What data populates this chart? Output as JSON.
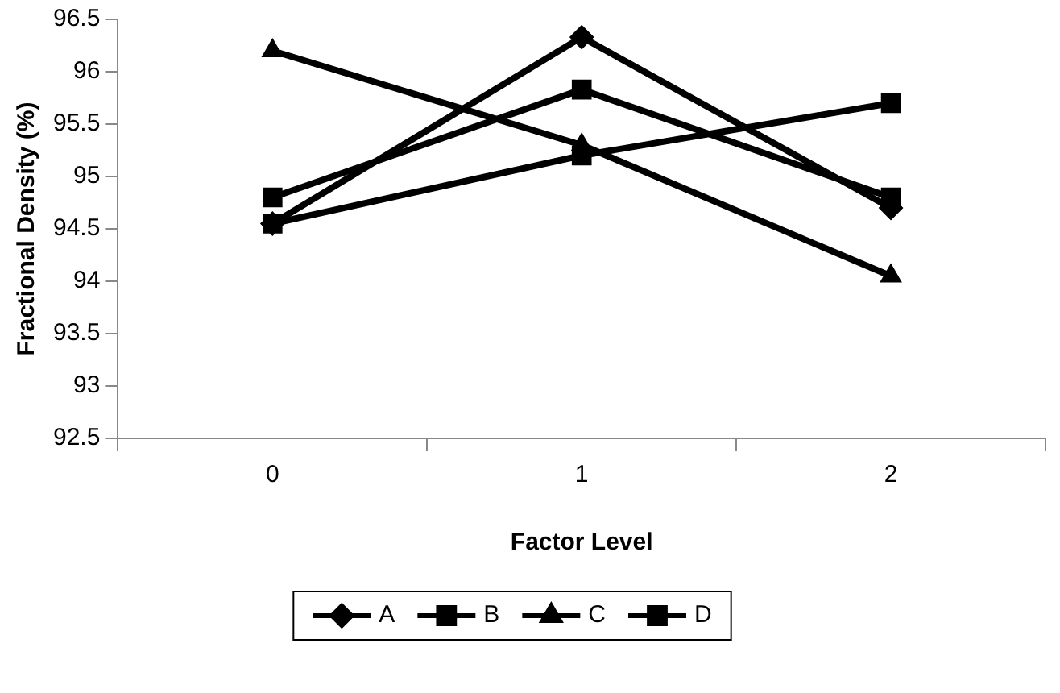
{
  "chart_data": {
    "type": "line",
    "xlabel": "Factor Level",
    "ylabel": "Fractional Density (%)",
    "categories": [
      "0",
      "1",
      "2"
    ],
    "series": [
      {
        "name": "A",
        "color": "#000000",
        "marker": "diamond",
        "values": [
          94.55,
          96.33,
          94.7
        ]
      },
      {
        "name": "B",
        "color": "#000000",
        "marker": "square",
        "values": [
          94.55,
          95.2,
          95.7
        ]
      },
      {
        "name": "C",
        "color": "#000000",
        "marker": "triangle",
        "values": [
          96.2,
          95.3,
          94.05
        ]
      },
      {
        "name": "D",
        "color": "#000000",
        "marker": "square",
        "values": [
          94.8,
          95.83,
          94.8
        ]
      }
    ],
    "ylim": [
      92.5,
      96.5
    ],
    "yticks": [
      92.5,
      93,
      93.5,
      94,
      94.5,
      95,
      95.5,
      96,
      96.5
    ],
    "grid": false,
    "legend": "bottom",
    "line_style": "solid"
  }
}
